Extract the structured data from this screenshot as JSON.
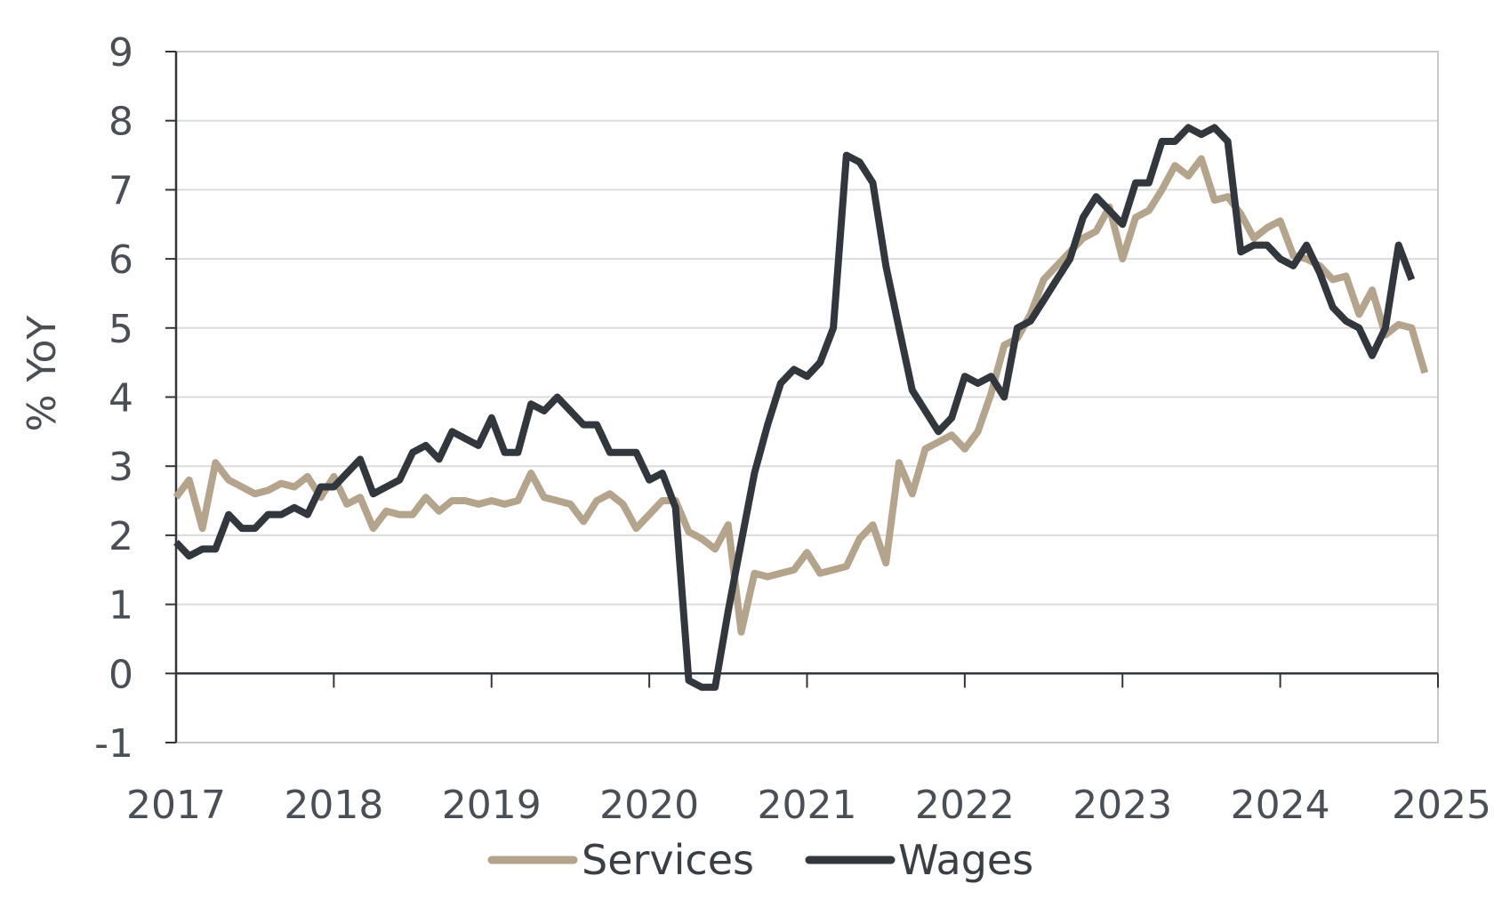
{
  "chart_data": {
    "type": "line",
    "title": "",
    "xlabel": "",
    "ylabel": "% YoY",
    "xlim": [
      2017,
      2025
    ],
    "ylim": [
      -1,
      9
    ],
    "x_ticks": [
      "2017",
      "2018",
      "2019",
      "2020",
      "2021",
      "2022",
      "2023",
      "2024",
      "2025"
    ],
    "y_ticks": [
      "-1",
      "0",
      "1",
      "2",
      "3",
      "4",
      "5",
      "6",
      "7",
      "8",
      "9"
    ],
    "grid": "horizontal",
    "legend_position": "bottom",
    "series": [
      {
        "name": "Services",
        "color": "#b5a48c",
        "x": [
          2017.0,
          2017.083,
          2017.167,
          2017.25,
          2017.333,
          2017.417,
          2017.5,
          2017.583,
          2017.667,
          2017.75,
          2017.833,
          2017.917,
          2018.0,
          2018.083,
          2018.167,
          2018.25,
          2018.333,
          2018.417,
          2018.5,
          2018.583,
          2018.667,
          2018.75,
          2018.833,
          2018.917,
          2019.0,
          2019.083,
          2019.167,
          2019.25,
          2019.333,
          2019.417,
          2019.5,
          2019.583,
          2019.667,
          2019.75,
          2019.833,
          2019.917,
          2020.0,
          2020.083,
          2020.167,
          2020.25,
          2020.333,
          2020.417,
          2020.5,
          2020.583,
          2020.667,
          2020.75,
          2020.833,
          2020.917,
          2021.0,
          2021.083,
          2021.167,
          2021.25,
          2021.333,
          2021.417,
          2021.5,
          2021.583,
          2021.667,
          2021.75,
          2021.833,
          2021.917,
          2022.0,
          2022.083,
          2022.167,
          2022.25,
          2022.333,
          2022.417,
          2022.5,
          2022.583,
          2022.667,
          2022.75,
          2022.833,
          2022.917,
          2023.0,
          2023.083,
          2023.167,
          2023.25,
          2023.333,
          2023.417,
          2023.5,
          2023.583,
          2023.667,
          2023.75,
          2023.833,
          2023.917,
          2024.0,
          2024.083,
          2024.167,
          2024.25,
          2024.333,
          2024.417,
          2024.5,
          2024.583,
          2024.667,
          2024.75,
          2024.833,
          2024.917
        ],
        "values": [
          2.55,
          2.8,
          2.1,
          3.05,
          2.8,
          2.7,
          2.6,
          2.65,
          2.75,
          2.7,
          2.85,
          2.55,
          2.85,
          2.45,
          2.55,
          2.1,
          2.35,
          2.3,
          2.3,
          2.55,
          2.35,
          2.5,
          2.5,
          2.45,
          2.5,
          2.45,
          2.5,
          2.9,
          2.55,
          2.5,
          2.45,
          2.2,
          2.5,
          2.6,
          2.45,
          2.1,
          2.3,
          2.5,
          2.5,
          2.05,
          1.95,
          1.8,
          2.15,
          0.6,
          1.45,
          1.4,
          1.45,
          1.5,
          1.75,
          1.45,
          1.5,
          1.55,
          1.95,
          2.15,
          1.6,
          3.05,
          2.6,
          3.25,
          3.35,
          3.45,
          3.25,
          3.5,
          4.05,
          4.75,
          4.85,
          5.2,
          5.7,
          5.9,
          6.1,
          6.3,
          6.4,
          6.75,
          6.0,
          6.6,
          6.7,
          7.0,
          7.35,
          7.2,
          7.45,
          6.85,
          6.9,
          6.65,
          6.3,
          6.45,
          6.55,
          6.05,
          6.0,
          5.9,
          5.7,
          5.75,
          5.2,
          5.55,
          4.9,
          5.05,
          5.0,
          4.35
        ]
      },
      {
        "name": "Wages",
        "color": "#31373d",
        "x": [
          2017.0,
          2017.083,
          2017.167,
          2017.25,
          2017.333,
          2017.417,
          2017.5,
          2017.583,
          2017.667,
          2017.75,
          2017.833,
          2017.917,
          2018.0,
          2018.083,
          2018.167,
          2018.25,
          2018.333,
          2018.417,
          2018.5,
          2018.583,
          2018.667,
          2018.75,
          2018.833,
          2018.917,
          2019.0,
          2019.083,
          2019.167,
          2019.25,
          2019.333,
          2019.417,
          2019.5,
          2019.583,
          2019.667,
          2019.75,
          2019.833,
          2019.917,
          2020.0,
          2020.083,
          2020.167,
          2020.25,
          2020.333,
          2020.417,
          2020.5,
          2020.583,
          2020.667,
          2020.75,
          2020.833,
          2020.917,
          2021.0,
          2021.083,
          2021.167,
          2021.25,
          2021.333,
          2021.417,
          2021.5,
          2021.583,
          2021.667,
          2021.75,
          2021.833,
          2021.917,
          2022.0,
          2022.083,
          2022.167,
          2022.25,
          2022.333,
          2022.417,
          2022.5,
          2022.583,
          2022.667,
          2022.75,
          2022.833,
          2022.917,
          2023.0,
          2023.083,
          2023.167,
          2023.25,
          2023.333,
          2023.417,
          2023.5,
          2023.583,
          2023.667,
          2023.75,
          2023.833,
          2023.917,
          2024.0,
          2024.083,
          2024.167,
          2024.25,
          2024.333,
          2024.417,
          2024.5,
          2024.583,
          2024.667,
          2024.75,
          2024.833
        ],
        "values": [
          1.9,
          1.7,
          1.8,
          1.8,
          2.3,
          2.1,
          2.1,
          2.3,
          2.3,
          2.4,
          2.3,
          2.7,
          2.7,
          2.9,
          3.1,
          2.6,
          2.7,
          2.8,
          3.2,
          3.3,
          3.1,
          3.5,
          3.4,
          3.3,
          3.7,
          3.2,
          3.2,
          3.9,
          3.8,
          4.0,
          3.8,
          3.6,
          3.6,
          3.2,
          3.2,
          3.2,
          2.8,
          2.9,
          2.4,
          -0.1,
          -0.2,
          -0.2,
          0.9,
          1.9,
          2.9,
          3.6,
          4.2,
          4.4,
          4.3,
          4.5,
          5.0,
          7.5,
          7.4,
          7.1,
          5.9,
          5.0,
          4.1,
          3.8,
          3.5,
          3.7,
          4.3,
          4.2,
          4.3,
          4.0,
          5.0,
          5.1,
          5.4,
          5.7,
          6.0,
          6.6,
          6.9,
          6.7,
          6.5,
          7.1,
          7.1,
          7.7,
          7.7,
          7.9,
          7.8,
          7.9,
          7.7,
          6.1,
          6.2,
          6.2,
          6.0,
          5.9,
          6.2,
          5.8,
          5.3,
          5.1,
          5.0,
          4.6,
          5.0,
          6.2,
          5.7
        ]
      }
    ]
  }
}
